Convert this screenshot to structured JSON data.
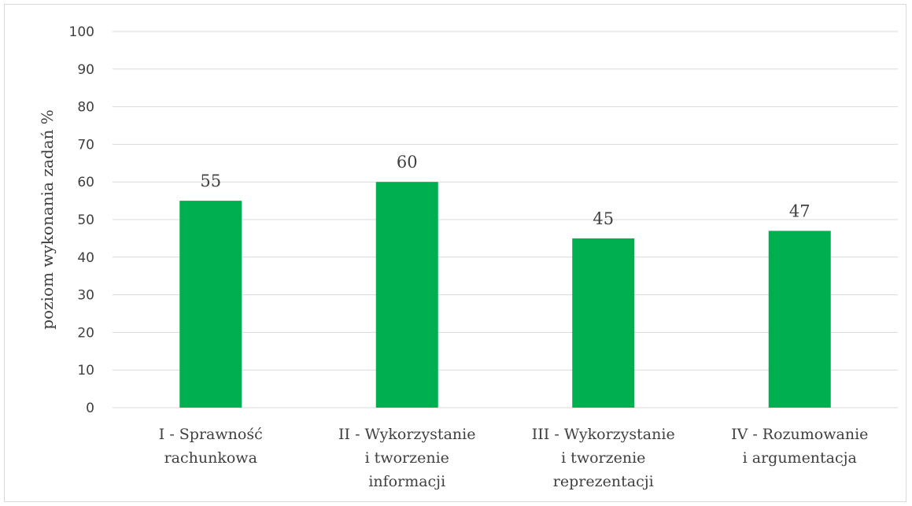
{
  "chart_data": {
    "type": "bar",
    "title": "",
    "ylabel": "poziom wykonania zadań %",
    "xlabel": "",
    "ylim": [
      0,
      100
    ],
    "yticks": [
      0,
      10,
      20,
      30,
      40,
      50,
      60,
      70,
      80,
      90,
      100
    ],
    "grid": true,
    "legend": "none",
    "bar_color": "#00b050",
    "categories": [
      [
        "I - Sprawność",
        "rachunkowa"
      ],
      [
        "II - Wykorzystanie",
        "i tworzenie",
        "informacji"
      ],
      [
        "III - Wykorzystanie",
        "i tworzenie",
        "reprezentacji"
      ],
      [
        "IV - Rozumowanie",
        "i argumentacja"
      ]
    ],
    "values": [
      55,
      60,
      45,
      47
    ],
    "data_labels": [
      "55",
      "60",
      "45",
      "47"
    ]
  }
}
